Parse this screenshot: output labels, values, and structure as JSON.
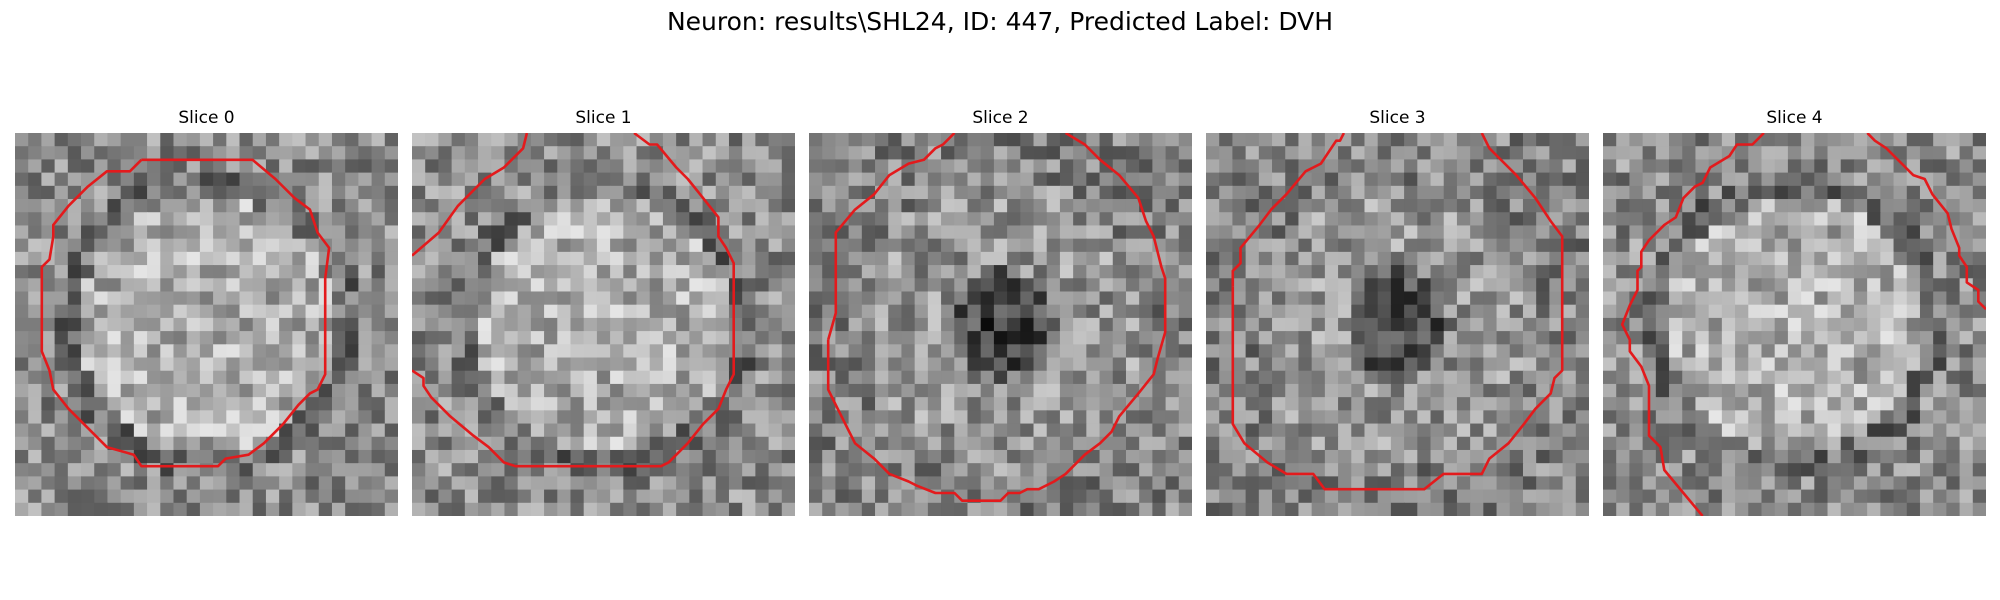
{
  "figure": {
    "suptitle": "Neuron: results\\SHL24, ID: 447, Predicted Label: DVH",
    "colormap": "grayscale",
    "contour_color": "#e31a1c"
  },
  "panels": [
    {
      "title": "Slice 0",
      "dark_center": false,
      "contour": [
        [
          0.33,
          0.07
        ],
        [
          0.62,
          0.07
        ],
        [
          0.68,
          0.12
        ],
        [
          0.73,
          0.17
        ],
        [
          0.77,
          0.2
        ],
        [
          0.79,
          0.26
        ],
        [
          0.82,
          0.3
        ],
        [
          0.81,
          0.38
        ],
        [
          0.81,
          0.45
        ],
        [
          0.81,
          0.56
        ],
        [
          0.81,
          0.63
        ],
        [
          0.79,
          0.67
        ],
        [
          0.77,
          0.68
        ],
        [
          0.74,
          0.71
        ],
        [
          0.7,
          0.76
        ],
        [
          0.65,
          0.81
        ],
        [
          0.61,
          0.84
        ],
        [
          0.55,
          0.85
        ],
        [
          0.53,
          0.87
        ],
        [
          0.33,
          0.87
        ],
        [
          0.31,
          0.84
        ],
        [
          0.24,
          0.82
        ],
        [
          0.19,
          0.77
        ],
        [
          0.14,
          0.72
        ],
        [
          0.1,
          0.67
        ],
        [
          0.09,
          0.62
        ],
        [
          0.07,
          0.57
        ],
        [
          0.07,
          0.47
        ],
        [
          0.07,
          0.4
        ],
        [
          0.07,
          0.35
        ],
        [
          0.09,
          0.33
        ],
        [
          0.1,
          0.27
        ],
        [
          0.1,
          0.24
        ],
        [
          0.14,
          0.19
        ],
        [
          0.19,
          0.14
        ],
        [
          0.24,
          0.1
        ],
        [
          0.3,
          0.1
        ],
        [
          0.33,
          0.07
        ]
      ]
    },
    {
      "title": "Slice 1",
      "dark_center": false,
      "contour": [
        [
          0.0,
          0.32
        ],
        [
          0.07,
          0.26
        ],
        [
          0.12,
          0.19
        ],
        [
          0.19,
          0.12
        ],
        [
          0.24,
          0.09
        ],
        [
          0.26,
          0.07
        ],
        [
          0.29,
          0.04
        ],
        [
          0.3,
          0.0
        ],
        null,
        [
          0.58,
          0.0
        ],
        [
          0.62,
          0.03
        ],
        [
          0.64,
          0.03
        ],
        [
          0.69,
          0.09
        ],
        [
          0.72,
          0.12
        ],
        [
          0.76,
          0.17
        ],
        [
          0.8,
          0.22
        ],
        [
          0.8,
          0.27
        ],
        [
          0.82,
          0.3
        ],
        [
          0.84,
          0.34
        ],
        [
          0.84,
          0.43
        ],
        [
          0.84,
          0.52
        ],
        [
          0.84,
          0.63
        ],
        [
          0.82,
          0.67
        ],
        [
          0.8,
          0.72
        ],
        [
          0.76,
          0.76
        ],
        [
          0.72,
          0.81
        ],
        [
          0.67,
          0.86
        ],
        [
          0.65,
          0.87
        ],
        [
          0.57,
          0.87
        ],
        [
          0.27,
          0.87
        ],
        [
          0.24,
          0.86
        ],
        [
          0.2,
          0.82
        ],
        [
          0.16,
          0.79
        ],
        [
          0.1,
          0.74
        ],
        [
          0.05,
          0.69
        ],
        [
          0.03,
          0.66
        ],
        [
          0.03,
          0.64
        ],
        [
          0.0,
          0.62
        ]
      ]
    },
    {
      "title": "Slice 2",
      "dark_center": true,
      "contour": [
        [
          0.05,
          0.54
        ],
        [
          0.07,
          0.47
        ],
        [
          0.07,
          0.38
        ],
        [
          0.07,
          0.31
        ],
        [
          0.07,
          0.26
        ],
        [
          0.12,
          0.2
        ],
        [
          0.17,
          0.16
        ],
        [
          0.21,
          0.11
        ],
        [
          0.26,
          0.08
        ],
        [
          0.3,
          0.07
        ],
        [
          0.33,
          0.04
        ],
        [
          0.35,
          0.03
        ],
        [
          0.38,
          0.0
        ],
        null,
        [
          0.67,
          0.0
        ],
        [
          0.72,
          0.03
        ],
        [
          0.76,
          0.07
        ],
        [
          0.81,
          0.11
        ],
        [
          0.86,
          0.17
        ],
        [
          0.88,
          0.23
        ],
        [
          0.9,
          0.27
        ],
        [
          0.92,
          0.35
        ],
        [
          0.93,
          0.38
        ],
        [
          0.93,
          0.52
        ],
        [
          0.91,
          0.59
        ],
        [
          0.9,
          0.63
        ],
        [
          0.86,
          0.68
        ],
        [
          0.81,
          0.74
        ],
        [
          0.79,
          0.78
        ],
        [
          0.76,
          0.81
        ],
        [
          0.72,
          0.84
        ],
        [
          0.67,
          0.89
        ],
        [
          0.64,
          0.91
        ],
        [
          0.6,
          0.93
        ],
        [
          0.57,
          0.93
        ],
        [
          0.55,
          0.94
        ],
        [
          0.52,
          0.94
        ],
        [
          0.5,
          0.96
        ],
        [
          0.4,
          0.96
        ],
        [
          0.38,
          0.94
        ],
        [
          0.33,
          0.94
        ],
        [
          0.28,
          0.92
        ],
        [
          0.26,
          0.91
        ],
        [
          0.21,
          0.89
        ],
        [
          0.17,
          0.85
        ],
        [
          0.12,
          0.81
        ],
        [
          0.1,
          0.77
        ],
        [
          0.07,
          0.71
        ],
        [
          0.05,
          0.67
        ],
        [
          0.05,
          0.54
        ]
      ]
    },
    {
      "title": "Slice 3",
      "dark_center": true,
      "contour": [
        [
          0.07,
          0.4
        ],
        [
          0.07,
          0.36
        ],
        [
          0.09,
          0.34
        ],
        [
          0.09,
          0.3
        ],
        [
          0.14,
          0.24
        ],
        [
          0.17,
          0.2
        ],
        [
          0.21,
          0.16
        ],
        [
          0.26,
          0.1
        ],
        [
          0.3,
          0.08
        ],
        [
          0.34,
          0.02
        ],
        [
          0.35,
          0.02
        ],
        [
          0.36,
          0.0
        ],
        null,
        [
          0.72,
          0.0
        ],
        [
          0.74,
          0.04
        ],
        [
          0.76,
          0.06
        ],
        [
          0.81,
          0.11
        ],
        [
          0.86,
          0.17
        ],
        [
          0.9,
          0.23
        ],
        [
          0.93,
          0.27
        ],
        [
          0.93,
          0.38
        ],
        [
          0.93,
          0.5
        ],
        [
          0.93,
          0.62
        ],
        [
          0.91,
          0.64
        ],
        [
          0.9,
          0.68
        ],
        [
          0.86,
          0.72
        ],
        [
          0.83,
          0.76
        ],
        [
          0.79,
          0.81
        ],
        [
          0.74,
          0.85
        ],
        [
          0.72,
          0.89
        ],
        [
          0.62,
          0.89
        ],
        [
          0.57,
          0.93
        ],
        [
          0.31,
          0.93
        ],
        [
          0.28,
          0.89
        ],
        [
          0.21,
          0.89
        ],
        [
          0.16,
          0.86
        ],
        [
          0.1,
          0.81
        ],
        [
          0.07,
          0.76
        ],
        [
          0.07,
          0.4
        ]
      ]
    },
    {
      "title": "Slice 4",
      "dark_center": false,
      "contour": [
        [
          0.26,
          1.0
        ],
        [
          0.21,
          0.94
        ],
        [
          0.16,
          0.88
        ],
        [
          0.15,
          0.82
        ],
        [
          0.12,
          0.79
        ],
        [
          0.12,
          0.66
        ],
        [
          0.1,
          0.61
        ],
        [
          0.07,
          0.57
        ],
        [
          0.07,
          0.54
        ],
        [
          0.05,
          0.5
        ],
        [
          0.07,
          0.45
        ],
        [
          0.09,
          0.41
        ],
        [
          0.09,
          0.36
        ],
        [
          0.1,
          0.35
        ],
        [
          0.1,
          0.31
        ],
        [
          0.12,
          0.28
        ],
        [
          0.16,
          0.24
        ],
        [
          0.19,
          0.22
        ],
        [
          0.21,
          0.17
        ],
        [
          0.24,
          0.14
        ],
        [
          0.26,
          0.13
        ],
        [
          0.28,
          0.09
        ],
        [
          0.33,
          0.06
        ],
        [
          0.35,
          0.03
        ],
        [
          0.39,
          0.03
        ],
        [
          0.42,
          0.0
        ],
        null,
        [
          0.69,
          0.0
        ],
        [
          0.71,
          0.02
        ],
        [
          0.74,
          0.04
        ],
        [
          0.76,
          0.06
        ],
        [
          0.79,
          0.09
        ],
        [
          0.81,
          0.11
        ],
        [
          0.84,
          0.12
        ],
        [
          0.86,
          0.16
        ],
        [
          0.9,
          0.21
        ],
        [
          0.91,
          0.25
        ],
        [
          0.93,
          0.3
        ],
        [
          0.93,
          0.32
        ],
        [
          0.95,
          0.35
        ],
        [
          0.95,
          0.39
        ],
        [
          0.98,
          0.41
        ],
        [
          0.98,
          0.44
        ],
        [
          1.0,
          0.46
        ]
      ]
    }
  ]
}
